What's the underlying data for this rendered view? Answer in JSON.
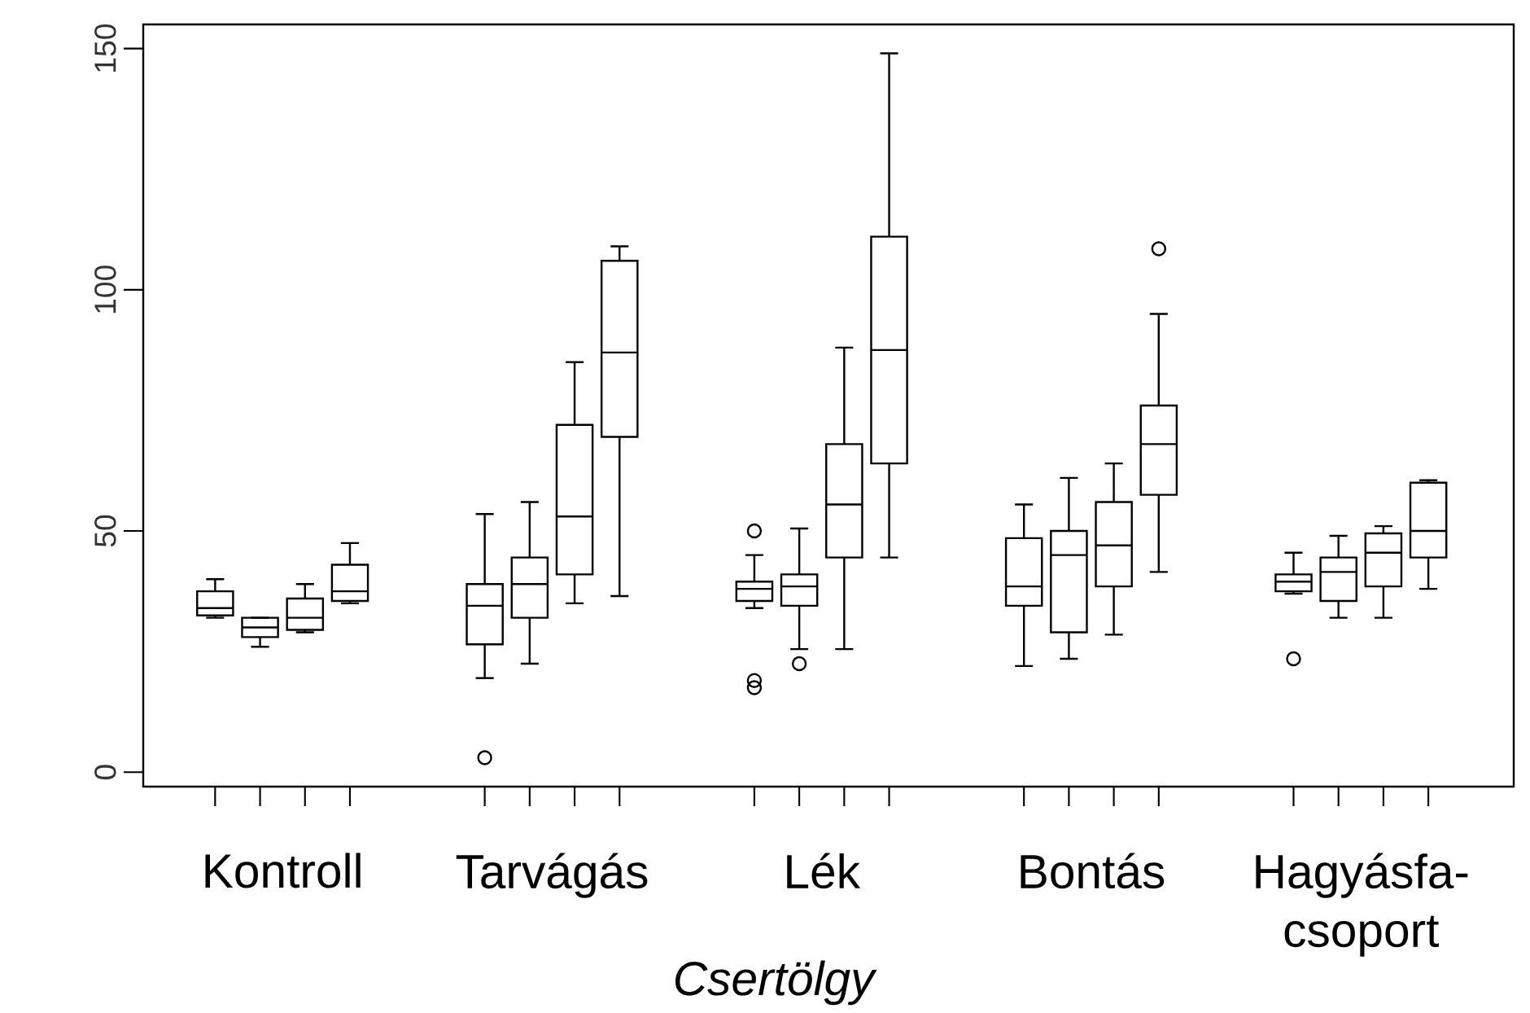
{
  "chart_data": {
    "type": "box",
    "xlabel": "Csertölgy",
    "categories": [
      "Kontroll",
      "Tarvágás",
      "Lék",
      "Bontás",
      "Hagyásfa-csoport"
    ],
    "ylim": [
      -3,
      155
    ],
    "yticks": [
      0,
      50,
      100,
      150
    ],
    "marker": "circle",
    "series": [
      {
        "boxes": [
          {
            "low": 32,
            "q1": 32.5,
            "median": 34,
            "q3": 37.5,
            "high": 40
          },
          {
            "low": 19.5,
            "q1": 26.5,
            "median": 34.5,
            "q3": 39,
            "high": 53.5,
            "outliers": [
              3
            ]
          },
          {
            "low": 34,
            "q1": 35.5,
            "median": 38,
            "q3": 39.5,
            "high": 45,
            "outliers": [
              50,
              19,
              17.5
            ]
          },
          {
            "low": 22,
            "q1": 34.5,
            "median": 38.5,
            "q3": 48.5,
            "high": 55.5
          },
          {
            "low": 37,
            "q1": 37.5,
            "median": 39.5,
            "q3": 41,
            "high": 45.5,
            "outliers": [
              23.5
            ]
          }
        ]
      },
      {
        "boxes": [
          {
            "low": 26,
            "q1": 28,
            "median": 30,
            "q3": 32,
            "high": 32
          },
          {
            "low": 22.5,
            "q1": 32,
            "median": 39,
            "q3": 44.5,
            "high": 56
          },
          {
            "low": 25.5,
            "q1": 34.5,
            "median": 38.5,
            "q3": 41,
            "high": 50.5,
            "outliers": [
              22.5
            ]
          },
          {
            "low": 23.5,
            "q1": 29,
            "median": 45,
            "q3": 50,
            "high": 61
          },
          {
            "low": 32,
            "q1": 35.5,
            "median": 41.5,
            "q3": 44.5,
            "high": 49
          }
        ]
      },
      {
        "boxes": [
          {
            "low": 29,
            "q1": 29.5,
            "median": 32,
            "q3": 36,
            "high": 39
          },
          {
            "low": 35,
            "q1": 41,
            "median": 53,
            "q3": 72,
            "high": 85
          },
          {
            "low": 25.5,
            "q1": 44.5,
            "median": 55.5,
            "q3": 68,
            "high": 88
          },
          {
            "low": 28.5,
            "q1": 38.5,
            "median": 47,
            "q3": 56,
            "high": 64
          },
          {
            "low": 32,
            "q1": 38.5,
            "median": 45.5,
            "q3": 49.5,
            "high": 51
          }
        ]
      },
      {
        "boxes": [
          {
            "low": 35,
            "q1": 35.5,
            "median": 37.5,
            "q3": 43,
            "high": 47.5
          },
          {
            "low": 36.5,
            "q1": 69.5,
            "median": 87,
            "q3": 106,
            "high": 109
          },
          {
            "low": 44.5,
            "q1": 64,
            "median": 87.5,
            "q3": 111,
            "high": 149
          },
          {
            "low": 41.5,
            "q1": 57.5,
            "median": 68,
            "q3": 76,
            "high": 95,
            "outliers": [
              108.5
            ]
          },
          {
            "low": 38,
            "q1": 44.5,
            "median": 50,
            "q3": 60,
            "high": 60.5
          }
        ]
      }
    ]
  }
}
